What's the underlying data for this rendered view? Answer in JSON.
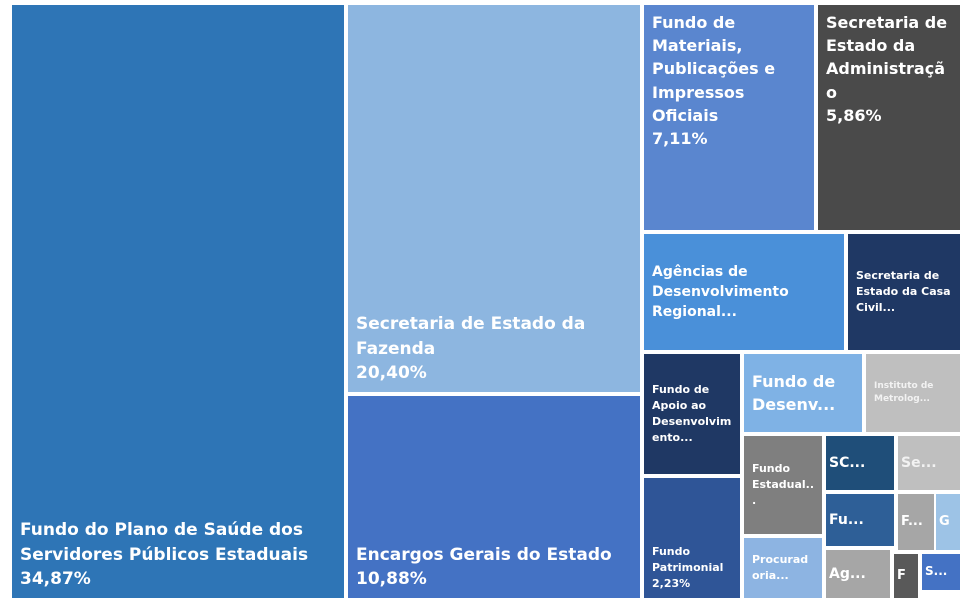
{
  "chart_data": {
    "type": "treemap",
    "labels": [
      "Fundo do Plano de Saúde dos Servidores Públicos Estaduais",
      "Secretaria de Estado da Fazenda",
      "Encargos Gerais do Estado",
      "Fundo de Materiais, Publicações e Impressos Oficiais",
      "Secretaria de Estado da Administração",
      "Agências de Desenvolvimento Regional...",
      "Secretaria de Estado da Casa Civil...",
      "Fundo de Apoio ao Desenvolvimento...",
      "Fundo Patrimonial",
      "Fundo de Desenv...",
      "Instituto de Metrolog...",
      "Fundo Estadual...",
      "Procuradoria...",
      "SC...",
      "Se...",
      "Fu...",
      "F...",
      "G",
      "Ag...",
      "F",
      "S..."
    ],
    "values": [
      34.87,
      20.4,
      10.88,
      7.11,
      5.86,
      3.0,
      1.6,
      1.5,
      2.23,
      1.2,
      0.9,
      0.9,
      0.7,
      0.6,
      0.5,
      0.5,
      0.3,
      0.2,
      0.5,
      0.2,
      0.3
    ],
    "value_labels": [
      "34,87%",
      "20,40%",
      "10,88%",
      "7,11%",
      "5,86%",
      null,
      null,
      null,
      "2,23%",
      null,
      null,
      null,
      null,
      null,
      null,
      null,
      null,
      null,
      null,
      null,
      null
    ],
    "colors": [
      "#2e75b6",
      "#8db6e0",
      "#4472c4",
      "#5a86cf",
      "#4a4a4a",
      "#4a90d9",
      "#1f3864",
      "#1f3864",
      "#2f5597",
      "#7fb2e5",
      "#bfbfbf",
      "#7f7f7f",
      "#8db4e2",
      "#1f4e79",
      "#bfbfbf",
      "#2e5f97",
      "#a6a6a6",
      "#9dc3e6",
      "#a6a6a6",
      "#595959",
      "#4472c4"
    ]
  }
}
